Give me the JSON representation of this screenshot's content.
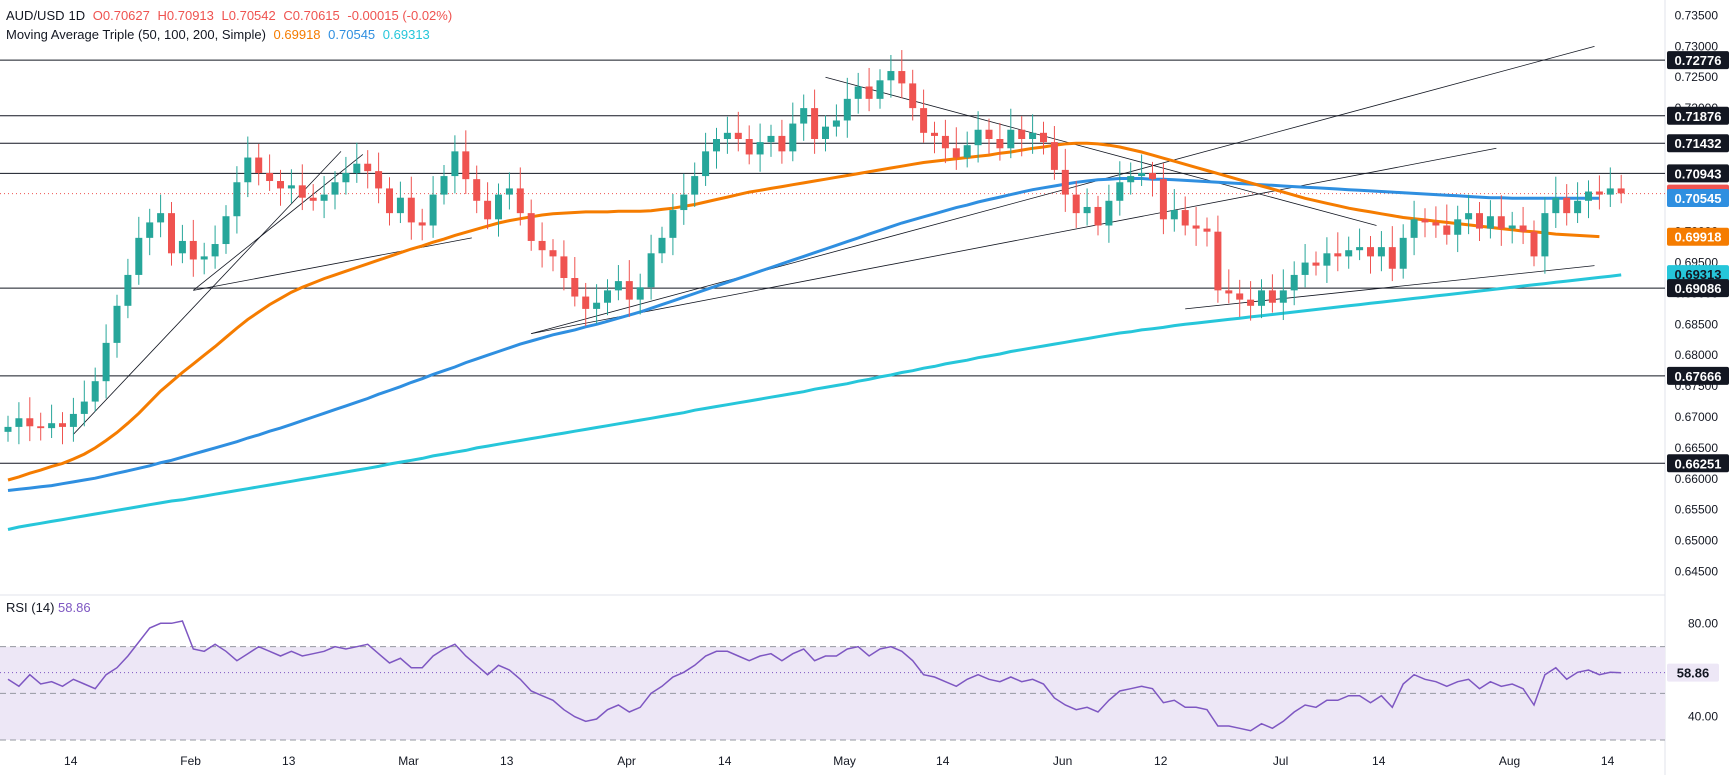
{
  "header": {
    "symbol": "AUD/USD",
    "timeframe": "1D",
    "open": "O0.70627",
    "high": "H0.70913",
    "low": "L0.70542",
    "close": "C0.70615",
    "change": "-0.00015 (-0.02%)",
    "ma_label": "Moving Average Triple (50, 100, 200, Simple)",
    "ma50": "0.69918",
    "ma100": "0.70545",
    "ma200": "0.69313"
  },
  "rsi_label": {
    "name": "RSI (14)",
    "value": "58.86"
  },
  "colors": {
    "up": "#26a69a",
    "down": "#ef5350",
    "ma50": "#f57c00",
    "ma100": "#2f8fe0",
    "ma200": "#26c6da",
    "rsi": "#7e57c2",
    "rsi_band": "#ede7f6",
    "price_line": "#ef5350",
    "grid_text": "#131722"
  },
  "chart_data": [
    {
      "type": "candlestick",
      "title": "AUD/USD, 1D",
      "ylim": [
        0.642,
        0.7375
      ],
      "y_ticks": [
        0.735,
        0.73,
        0.725,
        0.72,
        0.715,
        0.71,
        0.705,
        0.7,
        0.695,
        0.69,
        0.685,
        0.68,
        0.675,
        0.67,
        0.665,
        0.66,
        0.655,
        0.65,
        0.645
      ],
      "x_labels": [
        "14",
        "Feb",
        "13",
        "Mar",
        "13",
        "Apr",
        "14",
        "May",
        "14",
        "Jun",
        "12",
        "Jul",
        "14",
        "Aug",
        "14"
      ],
      "x_label_bars": [
        3,
        14,
        23,
        34,
        43,
        54,
        63,
        74,
        83,
        94,
        103,
        114,
        123,
        135,
        144
      ],
      "horizontal_levels": [
        0.72776,
        0.71876,
        0.71432,
        0.70943,
        0.69086,
        0.67666,
        0.66251
      ],
      "price_labels": [
        {
          "value": "0.72776",
          "kind": "level"
        },
        {
          "value": "0.71876",
          "kind": "level"
        },
        {
          "value": "0.71432",
          "kind": "level"
        },
        {
          "value": "0.70943",
          "kind": "level"
        },
        {
          "value": "0.70615",
          "kind": "price"
        },
        {
          "value": "0.70545",
          "kind": "ma100"
        },
        {
          "value": "0.69918",
          "kind": "ma50"
        },
        {
          "value": "0.69313",
          "kind": "ma200"
        },
        {
          "value": "0.69086",
          "kind": "level"
        },
        {
          "value": "0.67666",
          "kind": "level"
        },
        {
          "value": "0.66251",
          "kind": "level"
        }
      ],
      "current_price": 0.70615,
      "closes": [
        0.6684,
        0.6698,
        0.6685,
        0.6682,
        0.669,
        0.6684,
        0.6705,
        0.6725,
        0.6758,
        0.682,
        0.688,
        0.693,
        0.699,
        0.7015,
        0.703,
        0.6965,
        0.6985,
        0.6955,
        0.696,
        0.698,
        0.7025,
        0.708,
        0.712,
        0.7095,
        0.7082,
        0.707,
        0.7075,
        0.7055,
        0.705,
        0.706,
        0.708,
        0.7095,
        0.711,
        0.7098,
        0.707,
        0.703,
        0.7055,
        0.7015,
        0.701,
        0.706,
        0.709,
        0.713,
        0.7085,
        0.705,
        0.702,
        0.706,
        0.707,
        0.703,
        0.6985,
        0.697,
        0.696,
        0.6925,
        0.6895,
        0.6875,
        0.6885,
        0.6905,
        0.692,
        0.689,
        0.691,
        0.6965,
        0.699,
        0.7035,
        0.706,
        0.709,
        0.713,
        0.715,
        0.716,
        0.715,
        0.7125,
        0.7145,
        0.7155,
        0.713,
        0.7175,
        0.72,
        0.715,
        0.717,
        0.718,
        0.7215,
        0.7235,
        0.7215,
        0.7245,
        0.726,
        0.724,
        0.72,
        0.716,
        0.7155,
        0.7135,
        0.712,
        0.714,
        0.7165,
        0.715,
        0.7135,
        0.7165,
        0.715,
        0.716,
        0.7145,
        0.71,
        0.706,
        0.703,
        0.704,
        0.701,
        0.705,
        0.708,
        0.709,
        0.7095,
        0.7085,
        0.702,
        0.7035,
        0.701,
        0.7005,
        0.7,
        0.6905,
        0.69,
        0.689,
        0.688,
        0.6905,
        0.6885,
        0.6905,
        0.693,
        0.695,
        0.6945,
        0.6965,
        0.696,
        0.697,
        0.6975,
        0.696,
        0.6975,
        0.694,
        0.699,
        0.702,
        0.7015,
        0.701,
        0.6995,
        0.702,
        0.703,
        0.7005,
        0.7025,
        0.7005,
        0.701,
        0.7,
        0.696,
        0.703,
        0.7055,
        0.703,
        0.705,
        0.7065,
        0.706,
        0.707,
        0.7062
      ],
      "ma50": [
        0.6598,
        0.6603,
        0.6609,
        0.6614,
        0.662,
        0.6625,
        0.6632,
        0.664,
        0.665,
        0.6662,
        0.6675,
        0.669,
        0.6706,
        0.6724,
        0.6742,
        0.6757,
        0.6772,
        0.6786,
        0.68,
        0.6814,
        0.6829,
        0.6844,
        0.6858,
        0.687,
        0.6882,
        0.6892,
        0.6902,
        0.691,
        0.6917,
        0.6924,
        0.693,
        0.6936,
        0.6942,
        0.6948,
        0.6954,
        0.696,
        0.6966,
        0.6972,
        0.6977,
        0.6983,
        0.6988,
        0.6994,
        0.6999,
        0.7004,
        0.7009,
        0.7014,
        0.7018,
        0.7021,
        0.7024,
        0.7027,
        0.7029,
        0.703,
        0.7031,
        0.7032,
        0.7032,
        0.7032,
        0.7033,
        0.7033,
        0.7033,
        0.7034,
        0.7036,
        0.7038,
        0.7041,
        0.7044,
        0.7048,
        0.7052,
        0.7056,
        0.706,
        0.7064,
        0.7067,
        0.707,
        0.7073,
        0.7076,
        0.7079,
        0.7082,
        0.7085,
        0.7088,
        0.7091,
        0.7094,
        0.7097,
        0.71,
        0.7103,
        0.7106,
        0.7109,
        0.7112,
        0.7114,
        0.7116,
        0.7118,
        0.712,
        0.7122,
        0.7124,
        0.7127,
        0.7129,
        0.7132,
        0.7135,
        0.7137,
        0.714,
        0.7142,
        0.7143,
        0.7143,
        0.7142,
        0.714,
        0.7137,
        0.7133,
        0.7129,
        0.7124,
        0.7119,
        0.7114,
        0.7109,
        0.7104,
        0.7099,
        0.7094,
        0.7089,
        0.7084,
        0.7079,
        0.7074,
        0.7069,
        0.7064,
        0.7059,
        0.7054,
        0.705,
        0.7046,
        0.7042,
        0.7038,
        0.7035,
        0.7032,
        0.7029,
        0.7026,
        0.7023,
        0.7021,
        0.7019,
        0.7017,
        0.7015,
        0.7013,
        0.7011,
        0.7009,
        0.7007,
        0.7005,
        0.7003,
        0.7001,
        0.7,
        0.6998,
        0.6996,
        0.6995,
        0.6994,
        0.6993,
        0.6992
      ],
      "ma100": [
        0.6581,
        0.6583,
        0.6585,
        0.6587,
        0.6589,
        0.6592,
        0.6595,
        0.6598,
        0.6601,
        0.6605,
        0.6609,
        0.6613,
        0.6617,
        0.6621,
        0.6626,
        0.663,
        0.6635,
        0.664,
        0.6645,
        0.665,
        0.6655,
        0.666,
        0.6666,
        0.6671,
        0.6677,
        0.6682,
        0.6688,
        0.6694,
        0.67,
        0.6706,
        0.6712,
        0.6718,
        0.6724,
        0.673,
        0.6737,
        0.6743,
        0.6749,
        0.6756,
        0.6762,
        0.6769,
        0.6775,
        0.6781,
        0.6788,
        0.6794,
        0.68,
        0.6806,
        0.6812,
        0.6818,
        0.6823,
        0.6828,
        0.6833,
        0.6837,
        0.6841,
        0.6846,
        0.685,
        0.6855,
        0.686,
        0.6865,
        0.687,
        0.6876,
        0.6882,
        0.6888,
        0.6894,
        0.69,
        0.6906,
        0.6912,
        0.6918,
        0.6924,
        0.693,
        0.6936,
        0.6942,
        0.6948,
        0.6954,
        0.696,
        0.6966,
        0.6972,
        0.6978,
        0.6984,
        0.699,
        0.6996,
        0.7002,
        0.7008,
        0.7014,
        0.7019,
        0.7024,
        0.7029,
        0.7034,
        0.7039,
        0.7043,
        0.7048,
        0.7052,
        0.7056,
        0.706,
        0.7064,
        0.7068,
        0.7071,
        0.7074,
        0.7077,
        0.708,
        0.7082,
        0.7084,
        0.7085,
        0.7086,
        0.7086,
        0.7086,
        0.7085,
        0.7085,
        0.7084,
        0.7083,
        0.7082,
        0.7081,
        0.708,
        0.7079,
        0.7078,
        0.7077,
        0.7076,
        0.7075,
        0.7074,
        0.7073,
        0.7072,
        0.7071,
        0.707,
        0.7069,
        0.7068,
        0.7067,
        0.7066,
        0.7065,
        0.7064,
        0.7063,
        0.7062,
        0.7061,
        0.706,
        0.7059,
        0.7058,
        0.7057,
        0.7056,
        0.7055,
        0.7055,
        0.7054,
        0.7054,
        0.7054,
        0.7054,
        0.7054,
        0.7054,
        0.7054,
        0.7054,
        0.7054
      ],
      "ma200": [
        0.6518,
        0.6522,
        0.6525,
        0.6528,
        0.6531,
        0.6534,
        0.6537,
        0.654,
        0.6543,
        0.6546,
        0.6549,
        0.6552,
        0.6555,
        0.6558,
        0.6561,
        0.6564,
        0.6566,
        0.6569,
        0.6572,
        0.6575,
        0.6578,
        0.6581,
        0.6584,
        0.6587,
        0.659,
        0.6593,
        0.6596,
        0.6599,
        0.6602,
        0.6605,
        0.6608,
        0.6611,
        0.6614,
        0.6617,
        0.662,
        0.6624,
        0.6627,
        0.663,
        0.6633,
        0.6637,
        0.664,
        0.6643,
        0.6646,
        0.665,
        0.6653,
        0.6656,
        0.6659,
        0.6662,
        0.6665,
        0.6668,
        0.6671,
        0.6674,
        0.6677,
        0.668,
        0.6683,
        0.6686,
        0.6689,
        0.6692,
        0.6695,
        0.6698,
        0.6701,
        0.6704,
        0.6707,
        0.6711,
        0.6714,
        0.6717,
        0.672,
        0.6723,
        0.6726,
        0.6729,
        0.6732,
        0.6735,
        0.6738,
        0.6741,
        0.6745,
        0.6748,
        0.6751,
        0.6754,
        0.6758,
        0.6761,
        0.6765,
        0.6768,
        0.6772,
        0.6775,
        0.6779,
        0.6782,
        0.6786,
        0.6789,
        0.6792,
        0.6796,
        0.6799,
        0.6802,
        0.6806,
        0.6809,
        0.6812,
        0.6815,
        0.6818,
        0.6821,
        0.6824,
        0.6827,
        0.683,
        0.6833,
        0.6836,
        0.6838,
        0.6841,
        0.6843,
        0.6845,
        0.6848,
        0.685,
        0.6852,
        0.6854,
        0.6856,
        0.6858,
        0.686,
        0.6862,
        0.6864,
        0.6866,
        0.6868,
        0.687,
        0.6872,
        0.6874,
        0.6876,
        0.6878,
        0.688,
        0.6882,
        0.6884,
        0.6886,
        0.6888,
        0.689,
        0.6892,
        0.6894,
        0.6896,
        0.6898,
        0.69,
        0.6902,
        0.6904,
        0.6906,
        0.6908,
        0.691,
        0.6912,
        0.6914,
        0.6916,
        0.6918,
        0.692,
        0.6922,
        0.6924,
        0.6926,
        0.6928,
        0.693
      ]
    },
    {
      "type": "line",
      "title": "RSI (14)",
      "ylim": [
        30,
        90
      ],
      "y_ticks": [
        80.0,
        40.0
      ],
      "band": [
        30,
        70
      ],
      "midline": 50,
      "current": 58.86,
      "values": [
        56,
        53,
        58,
        54,
        55,
        53,
        56,
        54,
        52,
        58,
        61,
        66,
        72,
        78,
        80,
        80,
        81,
        69,
        68,
        71,
        68,
        64,
        67,
        70,
        68,
        66,
        68,
        66,
        67,
        68,
        70,
        69,
        70,
        71,
        67,
        63,
        65,
        61,
        61,
        66,
        69,
        71,
        66,
        62,
        58,
        62,
        60,
        56,
        51,
        49,
        47,
        43,
        40,
        38,
        39,
        43,
        45,
        42,
        44,
        50,
        53,
        57,
        59,
        62,
        66,
        68,
        68,
        66,
        64,
        66,
        67,
        64,
        67,
        69,
        64,
        66,
        66,
        69,
        70,
        66,
        69,
        70,
        68,
        64,
        58,
        57,
        55,
        53,
        56,
        58,
        56,
        55,
        57,
        55,
        56,
        54,
        48,
        45,
        43,
        44,
        42,
        47,
        51,
        52,
        53,
        52,
        46,
        47,
        44,
        44,
        43,
        36,
        36,
        35,
        34,
        37,
        35,
        38,
        42,
        45,
        44,
        47,
        47,
        49,
        49,
        46,
        49,
        44,
        54,
        58,
        56,
        55,
        53,
        55,
        56,
        52,
        55,
        53,
        54,
        52,
        45,
        58,
        61,
        56,
        59,
        60,
        58,
        59,
        58.86
      ]
    }
  ]
}
